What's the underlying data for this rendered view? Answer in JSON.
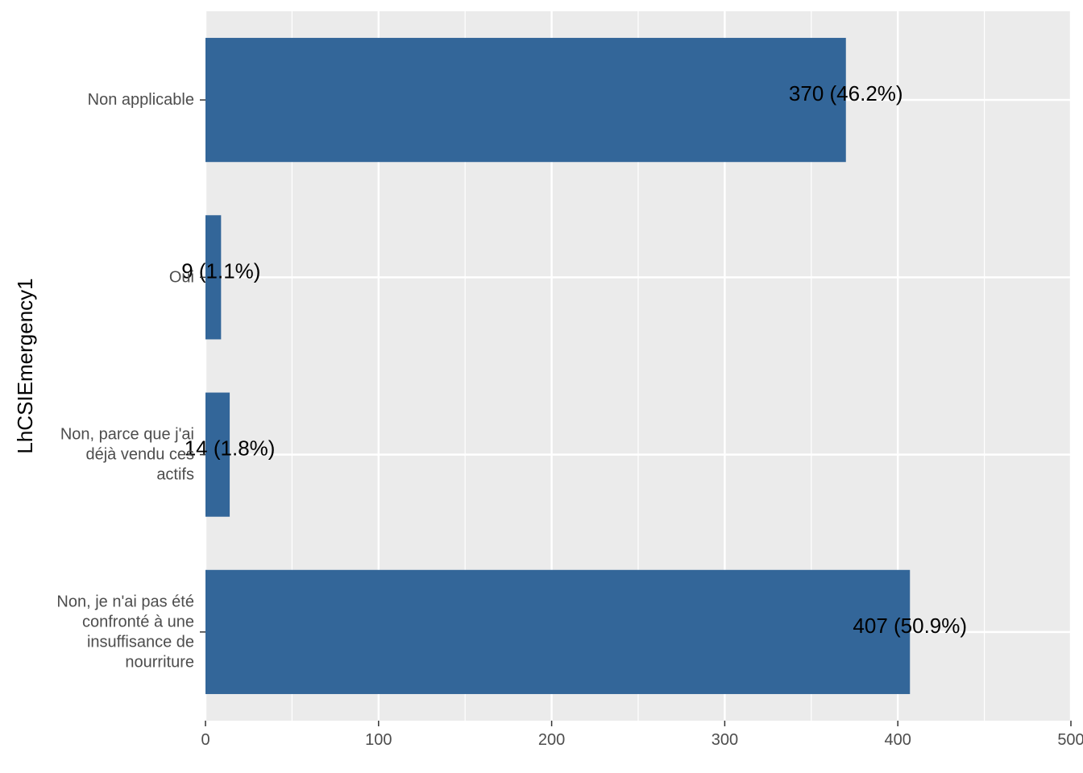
{
  "chart_data": {
    "type": "bar",
    "orientation": "horizontal",
    "title": "",
    "xlabel": "",
    "ylabel": "LhCSIEmergency1",
    "categories": [
      "Non applicable",
      "Oui",
      "Non, parce que j'ai déjà vendu ces actifs",
      "Non, je n'ai pas été confronté à une insuffisance de nourriture"
    ],
    "category_lines": [
      [
        "Non applicable"
      ],
      [
        "Oui"
      ],
      [
        "Non, parce que j'ai",
        "déjà vendu ces",
        "actifs"
      ],
      [
        "Non, je n'ai pas été",
        "confronté à une",
        "insuffisance de",
        "nourriture"
      ]
    ],
    "values": [
      370,
      9,
      14,
      407
    ],
    "data_labels": [
      "370 (46.2%)",
      "9 (1.1%)",
      "14 (1.8%)",
      "407 (50.9%)"
    ],
    "xlim": [
      0,
      500
    ],
    "x_ticks": [
      0,
      100,
      200,
      300,
      400,
      500
    ],
    "x_tick_labels": [
      "0",
      "100",
      "200",
      "300",
      "400",
      "500"
    ],
    "grid": true,
    "legend": "none",
    "colors": {
      "bar": "#336699",
      "panel_bg": "#EBEBEB",
      "grid": "#FFFFFF",
      "tick_text": "#4D4D4D",
      "label_text": "#000000"
    }
  }
}
